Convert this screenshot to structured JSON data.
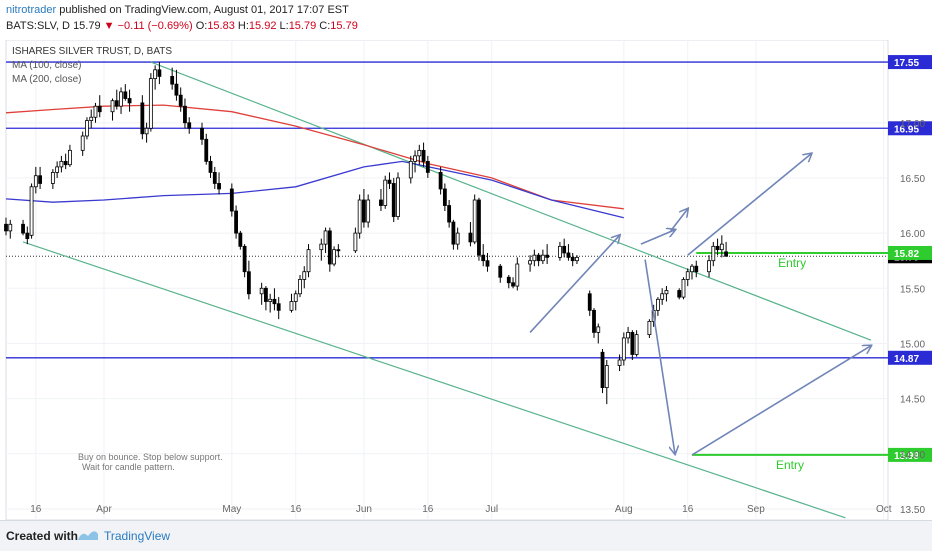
{
  "header": {
    "author": "nitrotrader",
    "published_text": "published on TradingView.com, August 01, 2017 17:07 EST",
    "symbol": "BATS:SLV, D",
    "last": "15.79",
    "change": "−0.11 (−0.69%)",
    "o_label": "O:",
    "o": "15.83",
    "h_label": "H:",
    "h": "15.92",
    "l_label": "L:",
    "l": "15.79",
    "c_label": "C:",
    "c": "15.79"
  },
  "footer": {
    "created_with": "Created with",
    "brand": "TradingView"
  },
  "colors": {
    "bull": "#ffffff",
    "bear": "#000000",
    "ma100": "#3a3ad0",
    "ma200": "#e0403a",
    "support": "#2b2bd6",
    "channel": "#58b38c",
    "arrow": "#7085b8",
    "entry": "#2ecc2e"
  },
  "chart_data": {
    "type": "candlestick",
    "title": "ISHARES SILVER TRUST, D, BATS",
    "legend": [
      "MA (100, close)",
      "MA (200, close)"
    ],
    "ylim": [
      13.4,
      17.75
    ],
    "y_ticks": [
      "17.00",
      "16.50",
      "16.00",
      "15.50",
      "15.00",
      "14.50",
      "14.00",
      "13.50"
    ],
    "x_ticks": [
      "16",
      "Apr",
      "May",
      "16",
      "Jun",
      "16",
      "Jul",
      "Aug",
      "16",
      "Sep",
      "Oct"
    ],
    "x_tick_dates": [
      "2017-03-16",
      "2017-04-01",
      "2017-05-01",
      "2017-05-16",
      "2017-06-01",
      "2017-06-16",
      "2017-07-01",
      "2017-08-01",
      "2017-08-16",
      "2017-09-01",
      "2017-10-01"
    ],
    "x_range": [
      "2017-03-09",
      "2017-10-02"
    ],
    "price_label_current": "15.79",
    "horizontal_levels": [
      {
        "label": "17.55",
        "value": 17.55
      },
      {
        "label": "16.95",
        "value": 16.95
      },
      {
        "label": "14.87",
        "value": 14.87
      }
    ],
    "entry_levels": [
      {
        "label": "15.82",
        "text": "Entry",
        "value": 15.82,
        "from": "2017-08-18"
      },
      {
        "label": "13.99",
        "text": "Entry",
        "value": 13.99,
        "from": "2017-08-17"
      }
    ],
    "channel_upper": [
      [
        "2017-04-12",
        17.55
      ],
      [
        "2017-09-28",
        15.03
      ]
    ],
    "channel_lower": [
      [
        "2017-03-13",
        15.92
      ],
      [
        "2017-09-22",
        13.42
      ]
    ],
    "scenario_arrows": [
      {
        "from": [
          "2017-07-10",
          15.1
        ],
        "to": [
          "2017-07-31",
          15.98
        ]
      },
      {
        "from": [
          "2017-08-05",
          15.9
        ],
        "to": [
          "2017-08-13",
          16.03
        ]
      },
      {
        "from": [
          "2017-08-12",
          16.02
        ],
        "to": [
          "2017-08-16",
          16.22
        ]
      },
      {
        "from": [
          "2017-08-16",
          15.8
        ],
        "to": [
          "2017-09-14",
          16.72
        ]
      },
      {
        "from": [
          "2017-08-06",
          15.76
        ],
        "to": [
          "2017-08-13",
          14.0
        ]
      },
      {
        "from": [
          "2017-08-17",
          13.99
        ],
        "to": [
          "2017-09-28",
          14.98
        ]
      }
    ],
    "note": [
      "Buy on bounce.  Stop below support.",
      "Wait for candle pattern."
    ],
    "ma100": [
      [
        "2017-03-09",
        16.31
      ],
      [
        "2017-03-20",
        16.28
      ],
      [
        "2017-04-01",
        16.3
      ],
      [
        "2017-04-15",
        16.34
      ],
      [
        "2017-05-01",
        16.36
      ],
      [
        "2017-05-16",
        16.42
      ],
      [
        "2017-06-01",
        16.6
      ],
      [
        "2017-06-10",
        16.65
      ],
      [
        "2017-06-20",
        16.57
      ],
      [
        "2017-07-01",
        16.48
      ],
      [
        "2017-07-15",
        16.3
      ],
      [
        "2017-08-01",
        16.14
      ]
    ],
    "ma200": [
      [
        "2017-03-09",
        17.09
      ],
      [
        "2017-03-20",
        17.12
      ],
      [
        "2017-04-01",
        17.15
      ],
      [
        "2017-04-15",
        17.16
      ],
      [
        "2017-05-01",
        17.1
      ],
      [
        "2017-05-16",
        16.97
      ],
      [
        "2017-06-01",
        16.8
      ],
      [
        "2017-06-16",
        16.63
      ],
      [
        "2017-07-01",
        16.5
      ],
      [
        "2017-07-15",
        16.3
      ],
      [
        "2017-08-01",
        16.22
      ]
    ],
    "candles": [
      {
        "d": "2017-03-09",
        "o": 16.08,
        "h": 16.14,
        "l": 15.98,
        "c": 16.02
      },
      {
        "d": "2017-03-10",
        "o": 16.02,
        "h": 16.12,
        "l": 15.95,
        "c": 16.08
      },
      {
        "d": "2017-03-13",
        "o": 16.08,
        "h": 16.12,
        "l": 15.98,
        "c": 16.0
      },
      {
        "d": "2017-03-14",
        "o": 16.0,
        "h": 16.06,
        "l": 15.9,
        "c": 15.95
      },
      {
        "d": "2017-03-15",
        "o": 15.98,
        "h": 16.45,
        "l": 15.95,
        "c": 16.42
      },
      {
        "d": "2017-03-16",
        "o": 16.42,
        "h": 16.6,
        "l": 16.36,
        "c": 16.52
      },
      {
        "d": "2017-03-17",
        "o": 16.52,
        "h": 16.6,
        "l": 16.4,
        "c": 16.45
      },
      {
        "d": "2017-03-20",
        "o": 16.45,
        "h": 16.58,
        "l": 16.4,
        "c": 16.55
      },
      {
        "d": "2017-03-21",
        "o": 16.55,
        "h": 16.65,
        "l": 16.5,
        "c": 16.6
      },
      {
        "d": "2017-03-22",
        "o": 16.6,
        "h": 16.7,
        "l": 16.55,
        "c": 16.65
      },
      {
        "d": "2017-03-23",
        "o": 16.65,
        "h": 16.72,
        "l": 16.58,
        "c": 16.62
      },
      {
        "d": "2017-03-24",
        "o": 16.62,
        "h": 16.8,
        "l": 16.6,
        "c": 16.75
      },
      {
        "d": "2017-03-27",
        "o": 16.75,
        "h": 16.92,
        "l": 16.7,
        "c": 16.88
      },
      {
        "d": "2017-03-28",
        "o": 16.88,
        "h": 17.05,
        "l": 16.85,
        "c": 17.02
      },
      {
        "d": "2017-03-29",
        "o": 17.02,
        "h": 17.12,
        "l": 16.95,
        "c": 17.05
      },
      {
        "d": "2017-03-30",
        "o": 17.05,
        "h": 17.18,
        "l": 17.0,
        "c": 17.15
      },
      {
        "d": "2017-03-31",
        "o": 17.15,
        "h": 17.25,
        "l": 17.05,
        "c": 17.1
      },
      {
        "d": "2017-04-03",
        "o": 17.1,
        "h": 17.22,
        "l": 17.02,
        "c": 17.2
      },
      {
        "d": "2017-04-04",
        "o": 17.2,
        "h": 17.3,
        "l": 17.12,
        "c": 17.15
      },
      {
        "d": "2017-04-05",
        "o": 17.15,
        "h": 17.32,
        "l": 17.08,
        "c": 17.28
      },
      {
        "d": "2017-04-06",
        "o": 17.28,
        "h": 17.35,
        "l": 17.2,
        "c": 17.22
      },
      {
        "d": "2017-04-07",
        "o": 17.22,
        "h": 17.3,
        "l": 17.1,
        "c": 17.18
      },
      {
        "d": "2017-04-10",
        "o": 17.18,
        "h": 17.25,
        "l": 16.85,
        "c": 16.9
      },
      {
        "d": "2017-04-11",
        "o": 16.9,
        "h": 17.0,
        "l": 16.82,
        "c": 16.95
      },
      {
        "d": "2017-04-12",
        "o": 16.95,
        "h": 17.45,
        "l": 16.92,
        "c": 17.4
      },
      {
        "d": "2017-04-13",
        "o": 17.4,
        "h": 17.52,
        "l": 17.3,
        "c": 17.48
      },
      {
        "d": "2017-04-14",
        "o": 17.48,
        "h": 17.55,
        "l": 17.35,
        "c": 17.42
      },
      {
        "d": "2017-04-17",
        "o": 17.42,
        "h": 17.5,
        "l": 17.3,
        "c": 17.35
      },
      {
        "d": "2017-04-18",
        "o": 17.35,
        "h": 17.48,
        "l": 17.2,
        "c": 17.25
      },
      {
        "d": "2017-04-19",
        "o": 17.25,
        "h": 17.32,
        "l": 17.1,
        "c": 17.15
      },
      {
        "d": "2017-04-20",
        "o": 17.15,
        "h": 17.22,
        "l": 16.95,
        "c": 17.0
      },
      {
        "d": "2017-04-21",
        "o": 17.0,
        "h": 17.05,
        "l": 16.9,
        "c": 16.95
      },
      {
        "d": "2017-04-24",
        "o": 16.95,
        "h": 17.0,
        "l": 16.8,
        "c": 16.85
      },
      {
        "d": "2017-04-25",
        "o": 16.85,
        "h": 16.9,
        "l": 16.62,
        "c": 16.65
      },
      {
        "d": "2017-04-26",
        "o": 16.65,
        "h": 16.7,
        "l": 16.5,
        "c": 16.55
      },
      {
        "d": "2017-04-27",
        "o": 16.55,
        "h": 16.6,
        "l": 16.4,
        "c": 16.45
      },
      {
        "d": "2017-04-28",
        "o": 16.45,
        "h": 16.55,
        "l": 16.35,
        "c": 16.4
      },
      {
        "d": "2017-05-01",
        "o": 16.4,
        "h": 16.45,
        "l": 16.15,
        "c": 16.2
      },
      {
        "d": "2017-05-02",
        "o": 16.2,
        "h": 16.25,
        "l": 15.95,
        "c": 16.0
      },
      {
        "d": "2017-05-03",
        "o": 16.0,
        "h": 16.02,
        "l": 15.85,
        "c": 15.88
      },
      {
        "d": "2017-05-04",
        "o": 15.88,
        "h": 15.9,
        "l": 15.6,
        "c": 15.65
      },
      {
        "d": "2017-05-05",
        "o": 15.65,
        "h": 15.75,
        "l": 15.4,
        "c": 15.45
      },
      {
        "d": "2017-05-08",
        "o": 15.45,
        "h": 15.55,
        "l": 15.35,
        "c": 15.5
      },
      {
        "d": "2017-05-09",
        "o": 15.5,
        "h": 15.52,
        "l": 15.3,
        "c": 15.38
      },
      {
        "d": "2017-05-10",
        "o": 15.38,
        "h": 15.45,
        "l": 15.28,
        "c": 15.4
      },
      {
        "d": "2017-05-11",
        "o": 15.4,
        "h": 15.5,
        "l": 15.3,
        "c": 15.36
      },
      {
        "d": "2017-05-12",
        "o": 15.36,
        "h": 15.42,
        "l": 15.22,
        "c": 15.3
      },
      {
        "d": "2017-05-15",
        "o": 15.3,
        "h": 15.45,
        "l": 15.28,
        "c": 15.38
      },
      {
        "d": "2017-05-16",
        "o": 15.38,
        "h": 15.48,
        "l": 15.3,
        "c": 15.45
      },
      {
        "d": "2017-05-17",
        "o": 15.45,
        "h": 15.62,
        "l": 15.42,
        "c": 15.58
      },
      {
        "d": "2017-05-18",
        "o": 15.58,
        "h": 15.7,
        "l": 15.5,
        "c": 15.65
      },
      {
        "d": "2017-05-19",
        "o": 15.65,
        "h": 15.9,
        "l": 15.6,
        "c": 15.85
      },
      {
        "d": "2017-05-22",
        "o": 15.85,
        "h": 15.95,
        "l": 15.75,
        "c": 15.9
      },
      {
        "d": "2017-05-23",
        "o": 15.9,
        "h": 16.05,
        "l": 15.82,
        "c": 16.02
      },
      {
        "d": "2017-05-24",
        "o": 16.02,
        "h": 16.05,
        "l": 15.65,
        "c": 15.72
      },
      {
        "d": "2017-05-25",
        "o": 15.72,
        "h": 15.88,
        "l": 15.7,
        "c": 15.85
      },
      {
        "d": "2017-05-26",
        "o": 15.85,
        "h": 15.9,
        "l": 15.78,
        "c": 15.84
      },
      {
        "d": "2017-05-30",
        "o": 15.84,
        "h": 16.05,
        "l": 15.82,
        "c": 16.0
      },
      {
        "d": "2017-05-31",
        "o": 16.0,
        "h": 16.35,
        "l": 15.95,
        "c": 16.3
      },
      {
        "d": "2017-06-01",
        "o": 16.3,
        "h": 16.4,
        "l": 16.05,
        "c": 16.1
      },
      {
        "d": "2017-06-02",
        "o": 16.1,
        "h": 16.35,
        "l": 16.05,
        "c": 16.3
      },
      {
        "d": "2017-06-05",
        "o": 16.3,
        "h": 16.4,
        "l": 16.2,
        "c": 16.25
      },
      {
        "d": "2017-06-06",
        "o": 16.25,
        "h": 16.52,
        "l": 16.22,
        "c": 16.48
      },
      {
        "d": "2017-06-07",
        "o": 16.48,
        "h": 16.55,
        "l": 16.4,
        "c": 16.45
      },
      {
        "d": "2017-06-08",
        "o": 16.45,
        "h": 16.5,
        "l": 16.1,
        "c": 16.15
      },
      {
        "d": "2017-06-09",
        "o": 16.15,
        "h": 16.55,
        "l": 16.12,
        "c": 16.5
      },
      {
        "d": "2017-06-12",
        "o": 16.5,
        "h": 16.7,
        "l": 16.45,
        "c": 16.65
      },
      {
        "d": "2017-06-13",
        "o": 16.65,
        "h": 16.75,
        "l": 16.55,
        "c": 16.7
      },
      {
        "d": "2017-06-14",
        "o": 16.7,
        "h": 16.8,
        "l": 16.62,
        "c": 16.75
      },
      {
        "d": "2017-06-15",
        "o": 16.75,
        "h": 16.82,
        "l": 16.6,
        "c": 16.65
      },
      {
        "d": "2017-06-16",
        "o": 16.65,
        "h": 16.7,
        "l": 16.5,
        "c": 16.55
      },
      {
        "d": "2017-06-19",
        "o": 16.55,
        "h": 16.6,
        "l": 16.35,
        "c": 16.4
      },
      {
        "d": "2017-06-20",
        "o": 16.4,
        "h": 16.45,
        "l": 16.2,
        "c": 16.25
      },
      {
        "d": "2017-06-21",
        "o": 16.25,
        "h": 16.3,
        "l": 16.05,
        "c": 16.1
      },
      {
        "d": "2017-06-22",
        "o": 16.1,
        "h": 16.12,
        "l": 15.85,
        "c": 15.9
      },
      {
        "d": "2017-06-23",
        "o": 15.9,
        "h": 16.05,
        "l": 15.85,
        "c": 16.0
      },
      {
        "d": "2017-06-26",
        "o": 16.0,
        "h": 16.1,
        "l": 15.88,
        "c": 15.92
      },
      {
        "d": "2017-06-27",
        "o": 15.92,
        "h": 16.35,
        "l": 15.9,
        "c": 16.3
      },
      {
        "d": "2017-06-28",
        "o": 16.3,
        "h": 16.32,
        "l": 15.75,
        "c": 15.8
      },
      {
        "d": "2017-06-29",
        "o": 15.8,
        "h": 15.9,
        "l": 15.7,
        "c": 15.75
      },
      {
        "d": "2017-06-30",
        "o": 15.75,
        "h": 15.82,
        "l": 15.65,
        "c": 15.7
      },
      {
        "d": "2017-07-03",
        "o": 15.7,
        "h": 15.72,
        "l": 15.55,
        "c": 15.6
      },
      {
        "d": "2017-07-05",
        "o": 15.6,
        "h": 15.62,
        "l": 15.5,
        "c": 15.55
      },
      {
        "d": "2017-07-06",
        "o": 15.55,
        "h": 15.6,
        "l": 15.5,
        "c": 15.52
      },
      {
        "d": "2017-07-07",
        "o": 15.52,
        "h": 15.78,
        "l": 15.48,
        "c": 15.72
      },
      {
        "d": "2017-07-10",
        "o": 15.72,
        "h": 15.8,
        "l": 15.65,
        "c": 15.75
      },
      {
        "d": "2017-07-11",
        "o": 15.75,
        "h": 15.85,
        "l": 15.7,
        "c": 15.8
      },
      {
        "d": "2017-07-12",
        "o": 15.8,
        "h": 15.82,
        "l": 15.7,
        "c": 15.75
      },
      {
        "d": "2017-07-13",
        "o": 15.75,
        "h": 15.85,
        "l": 15.72,
        "c": 15.8
      },
      {
        "d": "2017-07-14",
        "o": 15.8,
        "h": 15.9,
        "l": 15.72,
        "c": 15.78
      },
      {
        "d": "2017-07-17",
        "o": 15.78,
        "h": 15.92,
        "l": 15.75,
        "c": 15.88
      },
      {
        "d": "2017-07-18",
        "o": 15.88,
        "h": 15.95,
        "l": 15.78,
        "c": 15.82
      },
      {
        "d": "2017-07-19",
        "o": 15.82,
        "h": 15.9,
        "l": 15.75,
        "c": 15.78
      },
      {
        "d": "2017-07-20",
        "o": 15.78,
        "h": 15.82,
        "l": 15.7,
        "c": 15.75
      },
      {
        "d": "2017-07-21",
        "o": 15.75,
        "h": 15.8,
        "l": 15.72,
        "c": 15.78
      },
      {
        "d": "2017-07-24",
        "o": 15.45,
        "h": 15.48,
        "l": 15.25,
        "c": 15.3
      },
      {
        "d": "2017-07-25",
        "o": 15.3,
        "h": 15.32,
        "l": 15.05,
        "c": 15.1
      },
      {
        "d": "2017-07-26",
        "o": 15.1,
        "h": 15.18,
        "l": 15.0,
        "c": 15.15
      },
      {
        "d": "2017-07-27",
        "o": 14.92,
        "h": 14.95,
        "l": 14.55,
        "c": 14.6
      },
      {
        "d": "2017-07-28",
        "o": 14.6,
        "h": 14.85,
        "l": 14.45,
        "c": 14.8
      },
      {
        "d": "2017-07-31",
        "o": 14.8,
        "h": 14.9,
        "l": 14.75,
        "c": 14.85
      },
      {
        "d": "2017-08-01",
        "o": 14.85,
        "h": 15.1,
        "l": 14.8,
        "c": 15.05
      },
      {
        "d": "2017-08-02",
        "o": 15.05,
        "h": 15.15,
        "l": 15.0,
        "c": 15.1
      },
      {
        "d": "2017-08-03",
        "o": 15.1,
        "h": 15.12,
        "l": 14.85,
        "c": 14.9
      },
      {
        "d": "2017-08-04",
        "o": 14.9,
        "h": 15.12,
        "l": 14.88,
        "c": 15.08
      },
      {
        "d": "2017-08-07",
        "o": 15.08,
        "h": 15.22,
        "l": 15.05,
        "c": 15.2
      },
      {
        "d": "2017-08-08",
        "o": 15.2,
        "h": 15.35,
        "l": 15.15,
        "c": 15.3
      },
      {
        "d": "2017-08-09",
        "o": 15.3,
        "h": 15.42,
        "l": 15.25,
        "c": 15.4
      },
      {
        "d": "2017-08-10",
        "o": 15.4,
        "h": 15.5,
        "l": 15.35,
        "c": 15.45
      },
      {
        "d": "2017-08-11",
        "o": 15.45,
        "h": 15.52,
        "l": 15.38,
        "c": 15.48
      },
      {
        "d": "2017-08-14",
        "o": 15.48,
        "h": 15.5,
        "l": 15.4,
        "c": 15.42
      },
      {
        "d": "2017-08-15",
        "o": 15.42,
        "h": 15.6,
        "l": 15.4,
        "c": 15.58
      },
      {
        "d": "2017-08-16",
        "o": 15.58,
        "h": 15.68,
        "l": 15.52,
        "c": 15.65
      },
      {
        "d": "2017-08-17",
        "o": 15.65,
        "h": 15.72,
        "l": 15.58,
        "c": 15.7
      },
      {
        "d": "2017-08-18",
        "o": 15.7,
        "h": 15.75,
        "l": 15.6,
        "c": 15.65
      },
      {
        "d": "2017-08-21",
        "o": 15.65,
        "h": 15.8,
        "l": 15.6,
        "c": 15.75
      },
      {
        "d": "2017-08-22",
        "o": 15.75,
        "h": 15.92,
        "l": 15.7,
        "c": 15.88
      },
      {
        "d": "2017-08-23",
        "o": 15.88,
        "h": 15.95,
        "l": 15.8,
        "c": 15.85
      },
      {
        "d": "2017-08-24",
        "o": 15.85,
        "h": 15.98,
        "l": 15.78,
        "c": 15.9
      },
      {
        "d": "2017-08-25",
        "o": 15.83,
        "h": 15.92,
        "l": 15.79,
        "c": 15.79
      }
    ]
  }
}
